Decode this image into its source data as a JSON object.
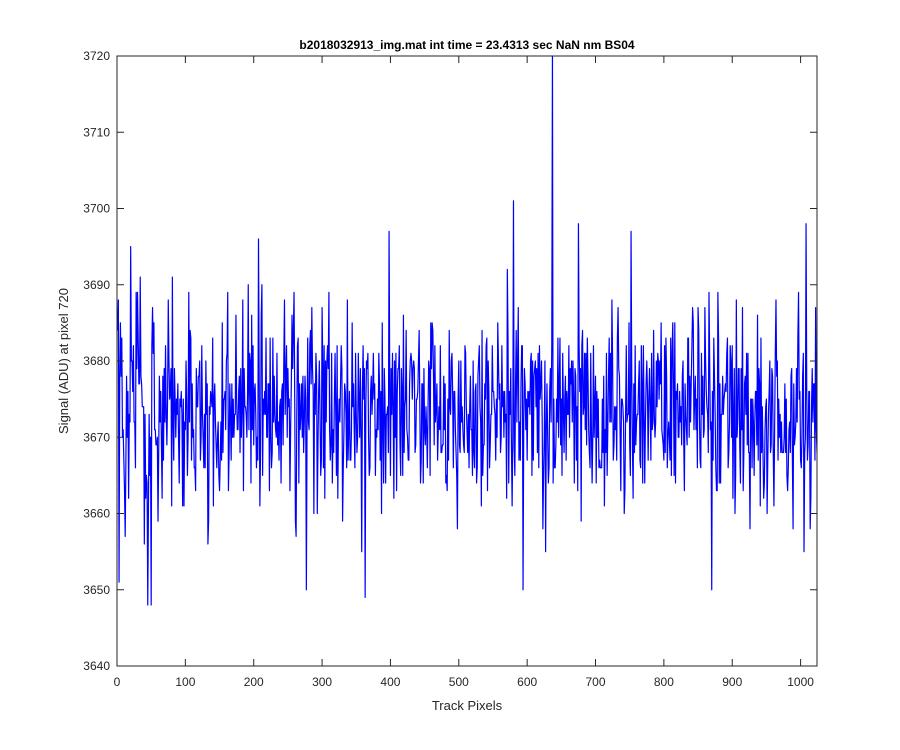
{
  "chart_data": {
    "type": "line",
    "title": "b2018032913_img.mat int time = 23.4313 sec  NaN nm BS04",
    "xlabel": "Track Pixels",
    "ylabel": "Signal (ADU) at pixel 720",
    "xlim": [
      0,
      1024
    ],
    "ylim": [
      3640,
      3720
    ],
    "x_ticks": [
      0,
      100,
      200,
      300,
      400,
      500,
      600,
      700,
      800,
      900,
      1000
    ],
    "y_ticks": [
      3640,
      3650,
      3660,
      3670,
      3680,
      3690,
      3700,
      3710,
      3720
    ],
    "x_tick_labels": [
      "0",
      "100",
      "200",
      "300",
      "400",
      "500",
      "600",
      "700",
      "800",
      "900",
      "1000"
    ],
    "y_tick_labels": [
      "3640",
      "3650",
      "3660",
      "3670",
      "3680",
      "3690",
      "3700",
      "3710",
      "3720"
    ],
    "grid": false,
    "series": [
      {
        "color": "#0000ff",
        "x_start": 1,
        "x_step": 1,
        "mean": 3674,
        "std": 6.5,
        "seed": 20180329,
        "point_count": 1024,
        "notable_points": [
          {
            "x": 3,
            "y": 3651
          },
          {
            "x": 5,
            "y": 3685
          },
          {
            "x": 20,
            "y": 3695
          },
          {
            "x": 28,
            "y": 3689
          },
          {
            "x": 40,
            "y": 3656
          },
          {
            "x": 45,
            "y": 3648
          },
          {
            "x": 50,
            "y": 3648
          },
          {
            "x": 75,
            "y": 3688
          },
          {
            "x": 133,
            "y": 3656
          },
          {
            "x": 207,
            "y": 3696
          },
          {
            "x": 277,
            "y": 3650
          },
          {
            "x": 363,
            "y": 3649
          },
          {
            "x": 398,
            "y": 3697
          },
          {
            "x": 580,
            "y": 3701
          },
          {
            "x": 594,
            "y": 3650
          },
          {
            "x": 637,
            "y": 3721
          },
          {
            "x": 675,
            "y": 3698
          },
          {
            "x": 752,
            "y": 3697
          },
          {
            "x": 870,
            "y": 3650
          },
          {
            "x": 1008,
            "y": 3698
          },
          {
            "x": 1005,
            "y": 3655
          }
        ]
      }
    ]
  }
}
